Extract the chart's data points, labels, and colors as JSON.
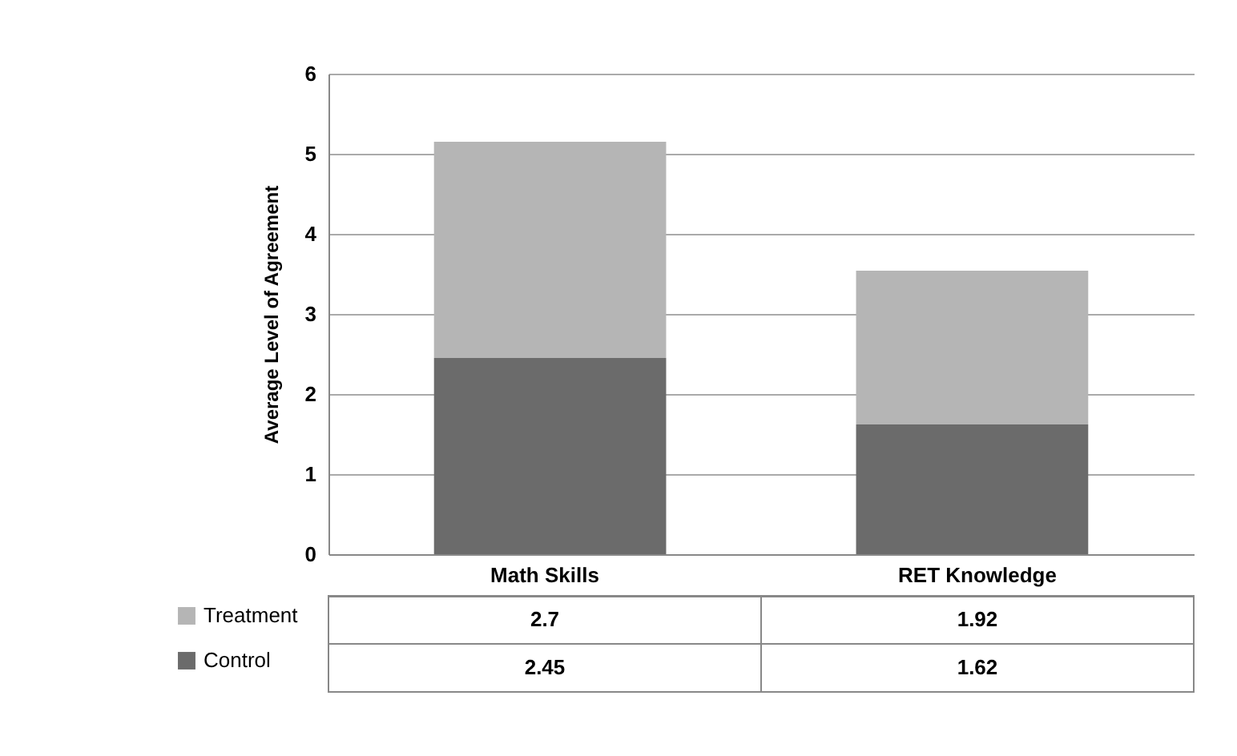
{
  "chart_data": {
    "type": "bar",
    "stacked": true,
    "ylabel": "Average Level of Agreement",
    "categories": [
      "Math Skills",
      "RET Knowledge"
    ],
    "series": [
      {
        "name": "Control",
        "color": "#6b6b6b",
        "values": [
          2.45,
          1.62
        ]
      },
      {
        "name": "Treatment",
        "color": "#b5b5b5",
        "values": [
          2.7,
          1.92
        ]
      }
    ],
    "ylim": [
      0,
      6
    ],
    "yticks": [
      0,
      1,
      2,
      3,
      4,
      5,
      6
    ],
    "grid": "y",
    "legend": "bottom",
    "data_labels": true
  }
}
